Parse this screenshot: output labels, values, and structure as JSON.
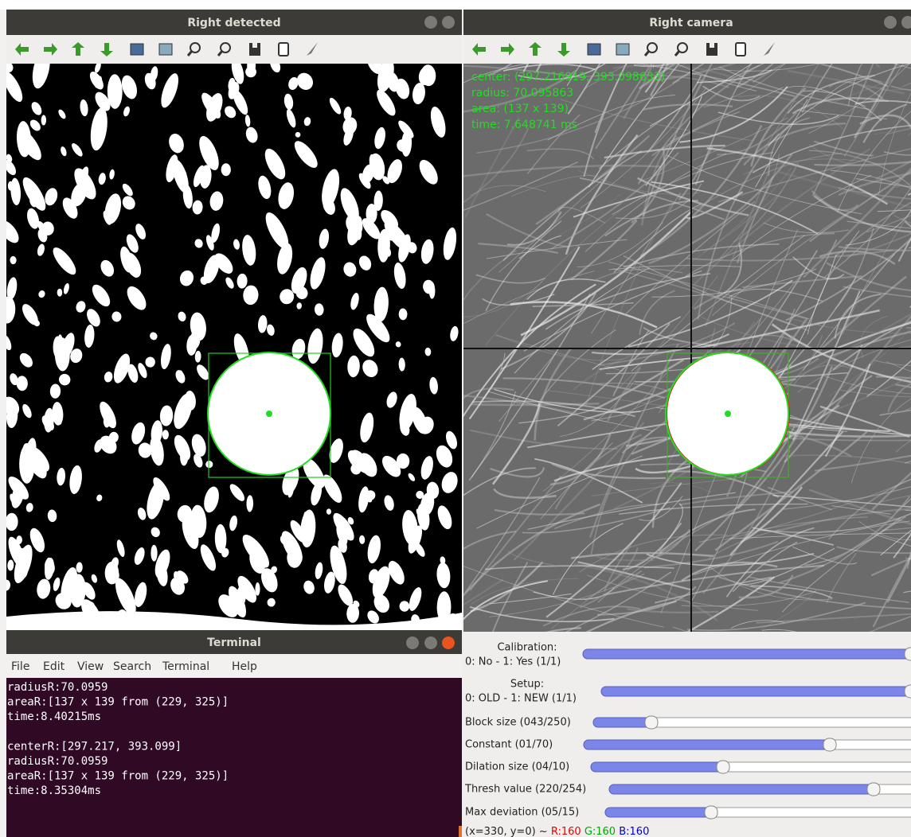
{
  "left_window": {
    "title": "Right detected"
  },
  "right_window": {
    "title": "Right camera",
    "overlay": [
      "center: (297.216919, 393.098633)",
      "radius: 70.095863",
      "area: (137 x 139)",
      "time: 7.648741 ms"
    ]
  },
  "terminal": {
    "title": "Terminal",
    "menu": [
      "File",
      "Edit",
      "View",
      "Search",
      "Terminal",
      "Help"
    ],
    "blocks": [
      [
        "radiusR:70.0959",
        "areaR:[137 x 139 from (229, 325)]",
        "time:8.40215ms"
      ],
      [
        "centerR:[297.217, 393.099]",
        "radiusR:70.0959",
        "areaR:[137 x 139 from (229, 325)]",
        "time:8.35304ms"
      ]
    ]
  },
  "trackbars": [
    {
      "title": "Calibration:",
      "label": "0: No - 1: Yes (1/1)"
    },
    {
      "title": "Setup:",
      "label": "0: OLD - 1: NEW (1/1)"
    },
    {
      "label": "Block size (043/250)"
    },
    {
      "label": "Constant  (01/70)"
    },
    {
      "label": "Dilation size (04/10)"
    },
    {
      "label": "Thresh value (220/254)"
    },
    {
      "label": "Max deviation (05/15)"
    }
  ],
  "status": {
    "position": "(x=330, y=0) ~",
    "r": "R:160",
    "g": "G:160",
    "b": "B:160"
  }
}
